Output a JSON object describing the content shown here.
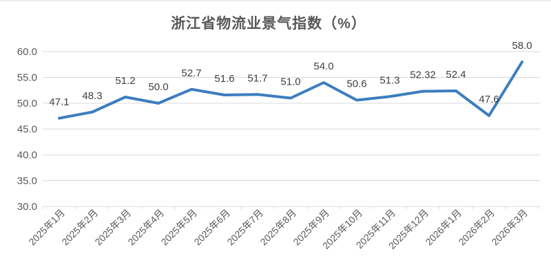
{
  "chart_data": {
    "type": "line",
    "title": "浙江省物流业景气指数（%）",
    "categories": [
      "2025年1月",
      "2025年2月",
      "2025年3月",
      "2025年4月",
      "2025年5月",
      "2025年6月",
      "2025年7月",
      "2025年8月",
      "2025年9月",
      "2025年10月",
      "2025年11月",
      "2025年12月",
      "2026年1月",
      "2026年2月",
      "2026年3月"
    ],
    "values": [
      47.1,
      48.3,
      51.2,
      50.0,
      52.7,
      51.6,
      51.7,
      51.0,
      54.0,
      50.6,
      51.3,
      52.32,
      52.4,
      47.6,
      58.0
    ],
    "value_labels": [
      "47.1",
      "48.3",
      "51.2",
      "50.0",
      "52.7",
      "51.6",
      "51.7",
      "51.0",
      "54.0",
      "50.6",
      "51.3",
      "52.32",
      "52.4",
      "47.6",
      "58.0"
    ],
    "xlabel": "",
    "ylabel": "",
    "ylim": [
      30,
      60
    ],
    "y_ticks": [
      "60.0",
      "55.0",
      "50.0",
      "45.0",
      "40.0",
      "35.0",
      "30.0"
    ],
    "grid": true,
    "legend_position": "none",
    "colors": {
      "line": "#3C7DBF",
      "grid": "#D9D9D9",
      "axis": "#D9D9D9",
      "data_label": "#404040",
      "tick_label": "#595959",
      "title": "#595959"
    }
  }
}
